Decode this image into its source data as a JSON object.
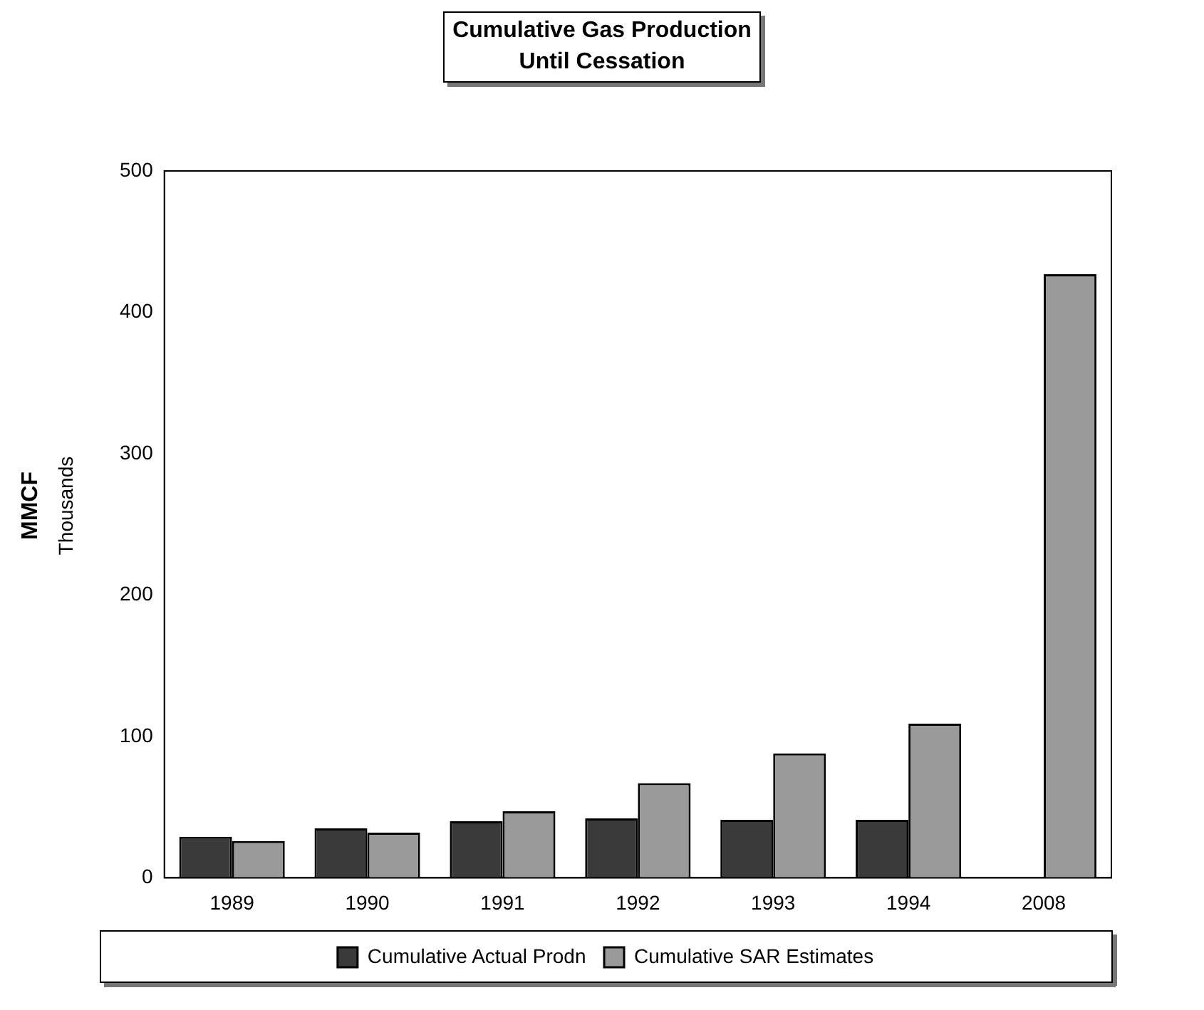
{
  "chart_data": {
    "type": "bar",
    "title": "Cumulative Gas Production\nUntil Cessation",
    "ylabel": "MMCF",
    "annotations": [
      "Thousands"
    ],
    "categories": [
      "1989",
      "1990",
      "1991",
      "1992",
      "1993",
      "1994",
      "2008"
    ],
    "series": [
      {
        "name": "Cumulative Actual Prodn",
        "color": "#3a3a3a",
        "values": [
          29,
          35,
          40,
          42,
          41,
          41,
          null
        ]
      },
      {
        "name": "Cumulative SAR Estimates",
        "color": "#9a9a9a",
        "values": [
          26,
          32,
          47,
          67,
          88,
          109,
          427
        ]
      }
    ],
    "ylim": [
      0,
      500
    ],
    "yticks": [
      0,
      100,
      200,
      300,
      400,
      500
    ],
    "grid": false,
    "legend": "bottom"
  }
}
